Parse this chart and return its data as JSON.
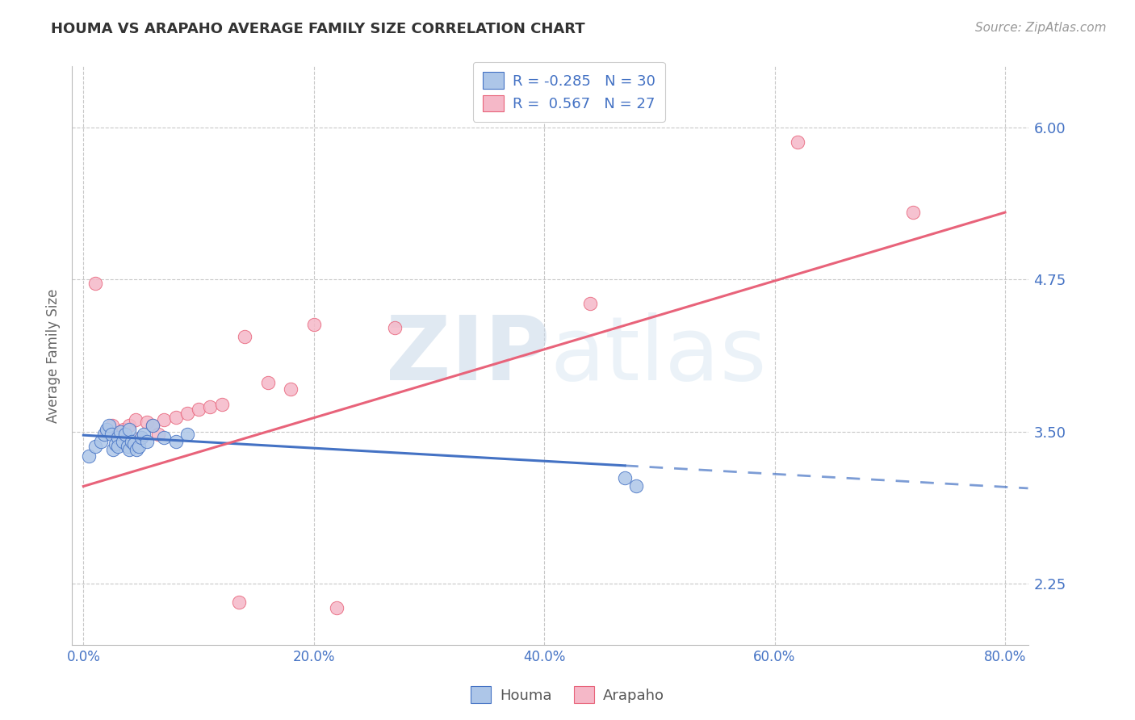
{
  "title": "HOUMA VS ARAPAHO AVERAGE FAMILY SIZE CORRELATION CHART",
  "source_text": "Source: ZipAtlas.com",
  "ylabel": "Average Family Size",
  "xlim": [
    -0.01,
    0.82
  ],
  "ylim": [
    1.75,
    6.5
  ],
  "yticks": [
    2.25,
    3.5,
    4.75,
    6.0
  ],
  "xticks": [
    0.0,
    0.2,
    0.4,
    0.6,
    0.8
  ],
  "xticklabels": [
    "0.0%",
    "20.0%",
    "40.0%",
    "60.0%",
    "80.0%"
  ],
  "houma_R": -0.285,
  "houma_N": 30,
  "arapaho_R": 0.567,
  "arapaho_N": 27,
  "houma_color": "#adc6e8",
  "arapaho_color": "#f5b8c8",
  "houma_line_color": "#4472c4",
  "arapaho_line_color": "#e8637a",
  "title_color": "#333333",
  "tick_color": "#4472c4",
  "grid_color": "#c8c8c8",
  "houma_x": [
    0.005,
    0.01,
    0.015,
    0.018,
    0.02,
    0.022,
    0.024,
    0.026,
    0.028,
    0.03,
    0.03,
    0.032,
    0.034,
    0.036,
    0.038,
    0.04,
    0.04,
    0.042,
    0.044,
    0.046,
    0.048,
    0.05,
    0.052,
    0.055,
    0.06,
    0.07,
    0.08,
    0.09,
    0.47,
    0.48
  ],
  "houma_y": [
    3.3,
    3.38,
    3.42,
    3.48,
    3.52,
    3.55,
    3.48,
    3.35,
    3.4,
    3.45,
    3.38,
    3.5,
    3.42,
    3.48,
    3.38,
    3.52,
    3.35,
    3.42,
    3.4,
    3.35,
    3.38,
    3.45,
    3.48,
    3.42,
    3.55,
    3.45,
    3.42,
    3.48,
    3.12,
    3.05
  ],
  "arapaho_x": [
    0.01,
    0.02,
    0.025,
    0.03,
    0.035,
    0.04,
    0.045,
    0.05,
    0.055,
    0.06,
    0.065,
    0.07,
    0.08,
    0.09,
    0.1,
    0.11,
    0.12,
    0.135,
    0.14,
    0.16,
    0.18,
    0.2,
    0.22,
    0.27,
    0.44,
    0.62,
    0.72
  ],
  "arapaho_y": [
    4.72,
    3.5,
    3.55,
    3.48,
    3.52,
    3.55,
    3.6,
    3.45,
    3.58,
    3.55,
    3.48,
    3.6,
    3.62,
    3.65,
    3.68,
    3.7,
    3.72,
    2.1,
    4.28,
    3.9,
    3.85,
    4.38,
    2.05,
    4.35,
    4.55,
    5.88,
    5.3
  ],
  "houma_trend_x0": 0.0,
  "houma_trend_y0": 3.47,
  "houma_trend_x1": 0.47,
  "houma_trend_y1": 3.22,
  "arapaho_trend_x0": 0.0,
  "arapaho_trend_y0": 3.05,
  "arapaho_trend_x1": 0.8,
  "arapaho_trend_y1": 5.3,
  "watermark_zip": "ZIP",
  "watermark_atlas": "atlas"
}
